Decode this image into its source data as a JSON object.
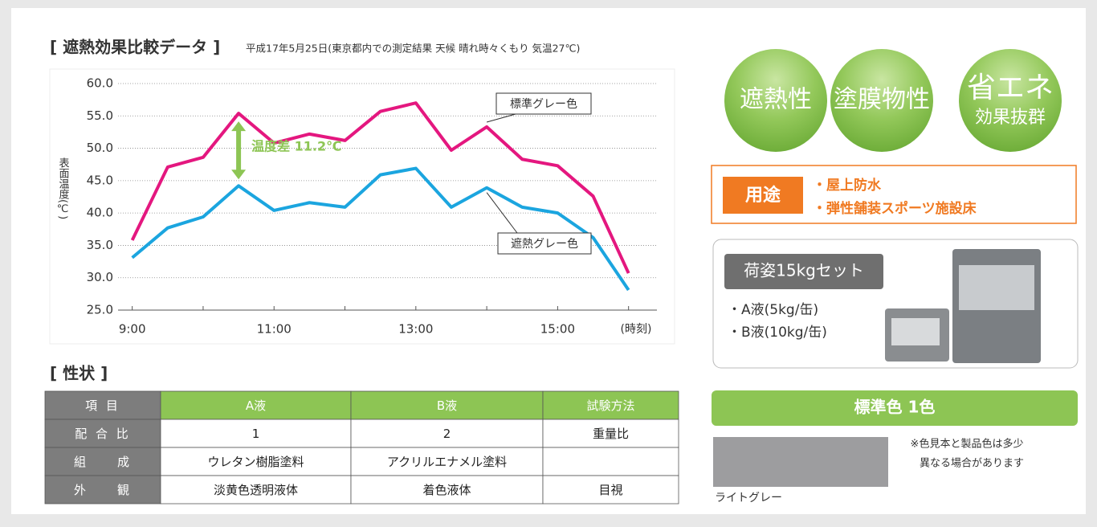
{
  "chart_data": {
    "type": "line",
    "title": "[ 遮熱効果比較データ ]",
    "subtitle": "平成17年5月25日(東京都内での測定結果 天候 晴れ時々くもり 気温27℃)",
    "y_label": "表面温度(℃)",
    "x_label": "(時刻)",
    "x": [
      9,
      9.5,
      10,
      10.5,
      11,
      11.5,
      12,
      12.5,
      13,
      13.5,
      14,
      14.5,
      15,
      15.5,
      16
    ],
    "series": [
      {
        "name": "標準グレー色",
        "color": "#e4177f",
        "values": [
          35.8,
          47.1,
          48.6,
          55.4,
          50.8,
          52.2,
          51.2,
          55.7,
          57.0,
          49.7,
          53.3,
          48.3,
          47.3,
          42.6,
          30.7
        ]
      },
      {
        "name": "遮熱グレー色",
        "color": "#1ba5df",
        "values": [
          33.1,
          37.7,
          39.4,
          44.2,
          40.4,
          41.6,
          40.9,
          45.9,
          46.9,
          40.9,
          43.9,
          40.9,
          40.0,
          36.2,
          28.1
        ]
      }
    ],
    "xlim": [
      8.8,
      16.4
    ],
    "xticks": [
      {
        "value": 9,
        "label": "9:00"
      },
      {
        "value": 11,
        "label": "11:00"
      },
      {
        "value": 13,
        "label": "13:00"
      },
      {
        "value": 15,
        "label": "15:00"
      }
    ],
    "xminorticks": [
      10,
      12,
      14,
      16
    ],
    "ylim": [
      25,
      60
    ],
    "yticks": [
      {
        "value": 25,
        "label": "25.0"
      },
      {
        "value": 30,
        "label": "30.0"
      },
      {
        "value": 35,
        "label": "35.0"
      },
      {
        "value": 40,
        "label": "40.0"
      },
      {
        "value": 45,
        "label": "45.0"
      },
      {
        "value": 50,
        "label": "50.0"
      },
      {
        "value": 55,
        "label": "55.0"
      },
      {
        "value": 60,
        "label": "60.0"
      }
    ],
    "grid": true,
    "annotation": {
      "text": "温度差 11.2℃",
      "color": "#8dc554"
    }
  },
  "properties": {
    "title": "[ 性状 ]",
    "header": [
      "項 目",
      "A液",
      "B液",
      "試験方法"
    ],
    "rows": [
      [
        "配 合 比",
        "1",
        "2",
        "重量比"
      ],
      [
        "組　　成",
        "ウレタン樹脂塗料",
        "アクリルエナメル塗料",
        null
      ],
      [
        "外　　観",
        "淡黄色透明液体",
        "着色液体",
        "目視"
      ]
    ]
  },
  "features": [
    {
      "label": "遮熱性"
    },
    {
      "label": "塗膜物性"
    },
    {
      "label": "省エネ",
      "sub": "効果抜群"
    }
  ],
  "usage": {
    "label": "用途",
    "items": [
      "・屋上防水",
      "・弾性舗装スポーツ施設床"
    ]
  },
  "package": {
    "label": "荷姿15kgセット",
    "items": [
      "・A液(5kg/缶)",
      "・B液(10kg/缶)"
    ]
  },
  "standard_color": {
    "title": "標準色 1色",
    "swatch": "ライトグレー",
    "swatch_color": "#9d9d9f",
    "note": [
      "※色見本と製品色は多少",
      "異なる場合があります"
    ]
  }
}
